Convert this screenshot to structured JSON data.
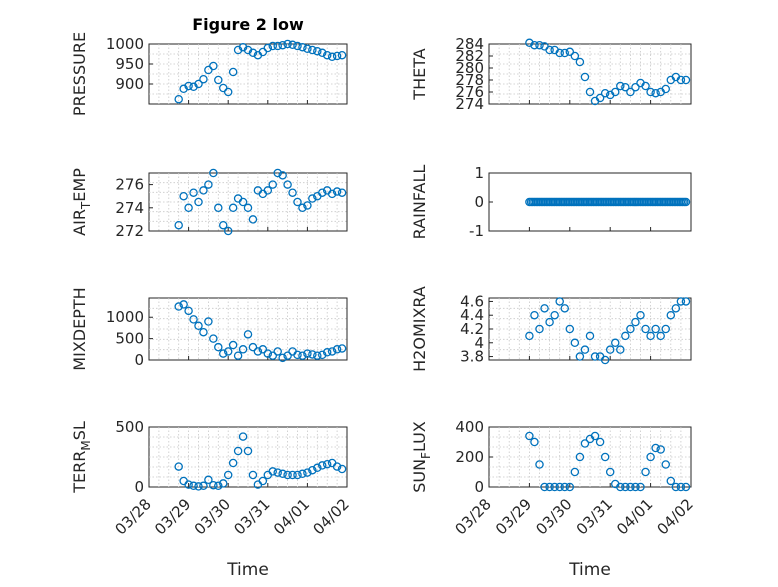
{
  "figure": {
    "title": "Figure 2 low",
    "xlabel": "Time",
    "date_ticks": [
      "03/28",
      "03/29",
      "03/30",
      "03/31",
      "04/01",
      "04/02"
    ],
    "marker_color": "#0072BD"
  },
  "chart_data": [
    {
      "type": "scatter",
      "title": "Figure 2 low",
      "ylabel": "PRESSURE",
      "xlabel": "",
      "xlim": [
        "03/28 00:00",
        "04/02 00:00"
      ],
      "ylim": [
        850,
        1000
      ],
      "yticks": [
        900,
        950,
        1000
      ],
      "grid": true,
      "x": [
        "03/28 18:00",
        "03/28 21:00",
        "03/29 00:00",
        "03/29 03:00",
        "03/29 06:00",
        "03/29 09:00",
        "03/29 12:00",
        "03/29 15:00",
        "03/29 18:00",
        "03/29 21:00",
        "03/30 00:00",
        "03/30 03:00",
        "03/30 06:00",
        "03/30 09:00",
        "03/30 12:00",
        "03/30 15:00",
        "03/30 18:00",
        "03/30 21:00",
        "03/31 00:00",
        "03/31 03:00",
        "03/31 06:00",
        "03/31 09:00",
        "03/31 12:00",
        "03/31 15:00",
        "03/31 18:00",
        "03/31 21:00",
        "04/01 00:00",
        "04/01 03:00",
        "04/01 06:00",
        "04/01 09:00",
        "04/01 12:00",
        "04/01 15:00",
        "04/01 18:00",
        "04/01 21:00"
      ],
      "y": [
        862,
        888,
        895,
        893,
        900,
        912,
        935,
        945,
        910,
        890,
        880,
        930,
        985,
        992,
        985,
        978,
        972,
        980,
        990,
        995,
        995,
        997,
        1000,
        998,
        995,
        992,
        988,
        985,
        982,
        978,
        972,
        968,
        970,
        972
      ]
    },
    {
      "type": "scatter",
      "ylabel": "THETA",
      "xlabel": "",
      "xlim": [
        "03/28 00:00",
        "04/02 00:00"
      ],
      "ylim": [
        274,
        284
      ],
      "yticks": [
        274,
        276,
        278,
        280,
        282,
        284
      ],
      "grid": true,
      "x": [
        "03/29 00:00",
        "03/29 03:00",
        "03/29 06:00",
        "03/29 09:00",
        "03/29 12:00",
        "03/29 15:00",
        "03/29 18:00",
        "03/29 21:00",
        "03/30 00:00",
        "03/30 03:00",
        "03/30 06:00",
        "03/30 09:00",
        "03/30 12:00",
        "03/30 15:00",
        "03/30 18:00",
        "03/30 21:00",
        "03/31 00:00",
        "03/31 03:00",
        "03/31 06:00",
        "03/31 09:00",
        "03/31 12:00",
        "03/31 15:00",
        "03/31 18:00",
        "03/31 21:00",
        "04/01 00:00",
        "04/01 03:00",
        "04/01 06:00",
        "04/01 09:00",
        "04/01 12:00",
        "04/01 15:00",
        "04/01 18:00",
        "04/01 21:00"
      ],
      "y": [
        284.2,
        283.8,
        283.8,
        283.6,
        283.0,
        283.0,
        282.5,
        282.5,
        282.7,
        282.0,
        281.0,
        278.5,
        276.0,
        274.5,
        275.0,
        275.8,
        275.5,
        276.0,
        277.0,
        276.8,
        276.0,
        276.8,
        277.5,
        277.0,
        276.0,
        275.8,
        276.0,
        276.5,
        278.0,
        278.5,
        278.0,
        278.0
      ]
    },
    {
      "type": "scatter",
      "ylabel": "AIR_TEMP",
      "xlabel": "",
      "xlim": [
        "03/28 00:00",
        "04/02 00:00"
      ],
      "ylim": [
        272,
        277
      ],
      "yticks": [
        272,
        274,
        276
      ],
      "grid": true,
      "x": [
        "03/28 18:00",
        "03/28 21:00",
        "03/29 00:00",
        "03/29 03:00",
        "03/29 06:00",
        "03/29 09:00",
        "03/29 12:00",
        "03/29 15:00",
        "03/29 18:00",
        "03/29 21:00",
        "03/30 00:00",
        "03/30 03:00",
        "03/30 06:00",
        "03/30 09:00",
        "03/30 12:00",
        "03/30 15:00",
        "03/30 18:00",
        "03/30 21:00",
        "03/31 00:00",
        "03/31 03:00",
        "03/31 06:00",
        "03/31 09:00",
        "03/31 12:00",
        "03/31 15:00",
        "03/31 18:00",
        "03/31 21:00",
        "04/01 00:00",
        "04/01 03:00",
        "04/01 06:00",
        "04/01 09:00",
        "04/01 12:00",
        "04/01 15:00",
        "04/01 18:00",
        "04/01 21:00"
      ],
      "y": [
        272.5,
        275.0,
        274.0,
        275.3,
        274.5,
        275.5,
        276.0,
        277.0,
        274.0,
        272.5,
        272.0,
        274.0,
        274.8,
        274.5,
        274.0,
        273.0,
        275.5,
        275.2,
        275.5,
        276.0,
        277.0,
        276.8,
        276.0,
        275.3,
        274.5,
        274.0,
        274.2,
        274.8,
        275.0,
        275.3,
        275.5,
        275.2,
        275.4,
        275.3
      ]
    },
    {
      "type": "scatter",
      "ylabel": "RAINFALL",
      "xlabel": "",
      "xlim": [
        "03/28 00:00",
        "04/02 00:00"
      ],
      "ylim": [
        -1,
        1
      ],
      "yticks": [
        -1,
        0,
        1
      ],
      "grid": false,
      "x_range": [
        "03/29 00:00",
        "04/01 21:00"
      ],
      "y_constant": 0
    },
    {
      "type": "scatter",
      "ylabel": "MIXDEPTH",
      "xlabel": "",
      "xlim": [
        "03/28 00:00",
        "04/02 00:00"
      ],
      "ylim": [
        0,
        1450
      ],
      "yticks": [
        0,
        500,
        1000
      ],
      "grid": true,
      "x": [
        "03/28 18:00",
        "03/28 21:00",
        "03/29 00:00",
        "03/29 03:00",
        "03/29 06:00",
        "03/29 09:00",
        "03/29 12:00",
        "03/29 15:00",
        "03/29 18:00",
        "03/29 21:00",
        "03/30 00:00",
        "03/30 03:00",
        "03/30 06:00",
        "03/30 09:00",
        "03/30 12:00",
        "03/30 15:00",
        "03/30 18:00",
        "03/30 21:00",
        "03/31 00:00",
        "03/31 03:00",
        "03/31 06:00",
        "03/31 09:00",
        "03/31 12:00",
        "03/31 15:00",
        "03/31 18:00",
        "03/31 21:00",
        "04/01 00:00",
        "04/01 03:00",
        "04/01 06:00",
        "04/01 09:00",
        "04/01 12:00",
        "04/01 15:00",
        "04/01 18:00",
        "04/01 21:00"
      ],
      "y": [
        1250,
        1300,
        1150,
        950,
        800,
        650,
        900,
        500,
        300,
        150,
        200,
        350,
        100,
        250,
        600,
        300,
        200,
        250,
        150,
        100,
        200,
        50,
        100,
        200,
        120,
        100,
        150,
        130,
        100,
        120,
        180,
        200,
        250,
        270
      ]
    },
    {
      "type": "scatter",
      "ylabel": "H2OMIXRA",
      "xlabel": "",
      "xlim": [
        "03/28 00:00",
        "04/02 00:00"
      ],
      "ylim": [
        3.75,
        4.65
      ],
      "yticks": [
        3.8,
        4.0,
        4.2,
        4.4,
        4.6
      ],
      "grid": true,
      "x": [
        "03/29 00:00",
        "03/29 03:00",
        "03/29 06:00",
        "03/29 09:00",
        "03/29 12:00",
        "03/29 15:00",
        "03/29 18:00",
        "03/29 21:00",
        "03/30 00:00",
        "03/30 03:00",
        "03/30 06:00",
        "03/30 09:00",
        "03/30 12:00",
        "03/30 15:00",
        "03/30 18:00",
        "03/30 21:00",
        "03/31 00:00",
        "03/31 03:00",
        "03/31 06:00",
        "03/31 09:00",
        "03/31 12:00",
        "03/31 15:00",
        "03/31 18:00",
        "03/31 21:00",
        "04/01 00:00",
        "04/01 03:00",
        "04/01 06:00",
        "04/01 09:00",
        "04/01 12:00",
        "04/01 15:00",
        "04/01 18:00",
        "04/01 21:00"
      ],
      "y": [
        4.1,
        4.4,
        4.2,
        4.5,
        4.3,
        4.4,
        4.6,
        4.5,
        4.2,
        4.0,
        3.8,
        3.9,
        4.1,
        3.8,
        3.8,
        3.75,
        3.9,
        4.0,
        3.9,
        4.1,
        4.2,
        4.3,
        4.4,
        4.2,
        4.1,
        4.2,
        4.1,
        4.2,
        4.4,
        4.5,
        4.6,
        4.6
      ]
    },
    {
      "type": "scatter",
      "ylabel": "TERR_MSL",
      "xlabel": "Time",
      "xlim": [
        "03/28 00:00",
        "04/02 00:00"
      ],
      "ylim": [
        0,
        500
      ],
      "yticks": [
        0,
        500
      ],
      "grid": true,
      "x": [
        "03/28 18:00",
        "03/28 21:00",
        "03/29 00:00",
        "03/29 03:00",
        "03/29 06:00",
        "03/29 09:00",
        "03/29 12:00",
        "03/29 15:00",
        "03/29 18:00",
        "03/29 21:00",
        "03/30 00:00",
        "03/30 03:00",
        "03/30 06:00",
        "03/30 09:00",
        "03/30 12:00",
        "03/30 15:00",
        "03/30 18:00",
        "03/30 21:00",
        "03/31 00:00",
        "03/31 03:00",
        "03/31 06:00",
        "03/31 09:00",
        "03/31 12:00",
        "03/31 15:00",
        "03/31 18:00",
        "03/31 21:00",
        "04/01 00:00",
        "04/01 03:00",
        "04/01 06:00",
        "04/01 09:00",
        "04/01 12:00",
        "04/01 15:00",
        "04/01 18:00",
        "04/01 21:00"
      ],
      "y": [
        170,
        50,
        20,
        10,
        5,
        10,
        60,
        15,
        10,
        30,
        100,
        200,
        300,
        420,
        300,
        100,
        20,
        50,
        100,
        130,
        120,
        110,
        100,
        100,
        100,
        110,
        120,
        140,
        160,
        180,
        190,
        200,
        170,
        150
      ]
    },
    {
      "type": "scatter",
      "ylabel": "SUN_FLUX",
      "xlabel": "Time",
      "xlim": [
        "03/28 00:00",
        "04/02 00:00"
      ],
      "ylim": [
        0,
        400
      ],
      "yticks": [
        0,
        200,
        400
      ],
      "grid": true,
      "x": [
        "03/29 00:00",
        "03/29 03:00",
        "03/29 06:00",
        "03/29 09:00",
        "03/29 12:00",
        "03/29 15:00",
        "03/29 18:00",
        "03/29 21:00",
        "03/30 00:00",
        "03/30 03:00",
        "03/30 06:00",
        "03/30 09:00",
        "03/30 12:00",
        "03/30 15:00",
        "03/30 18:00",
        "03/30 21:00",
        "03/31 00:00",
        "03/31 03:00",
        "03/31 06:00",
        "03/31 09:00",
        "03/31 12:00",
        "03/31 15:00",
        "03/31 18:00",
        "03/31 21:00",
        "04/01 00:00",
        "04/01 03:00",
        "04/01 06:00",
        "04/01 09:00",
        "04/01 12:00",
        "04/01 15:00",
        "04/01 18:00",
        "04/01 21:00"
      ],
      "y": [
        340,
        300,
        150,
        0,
        0,
        0,
        0,
        0,
        0,
        100,
        200,
        290,
        320,
        340,
        300,
        200,
        100,
        20,
        0,
        0,
        0,
        0,
        0,
        100,
        200,
        260,
        250,
        150,
        40,
        0,
        0,
        0
      ]
    }
  ]
}
